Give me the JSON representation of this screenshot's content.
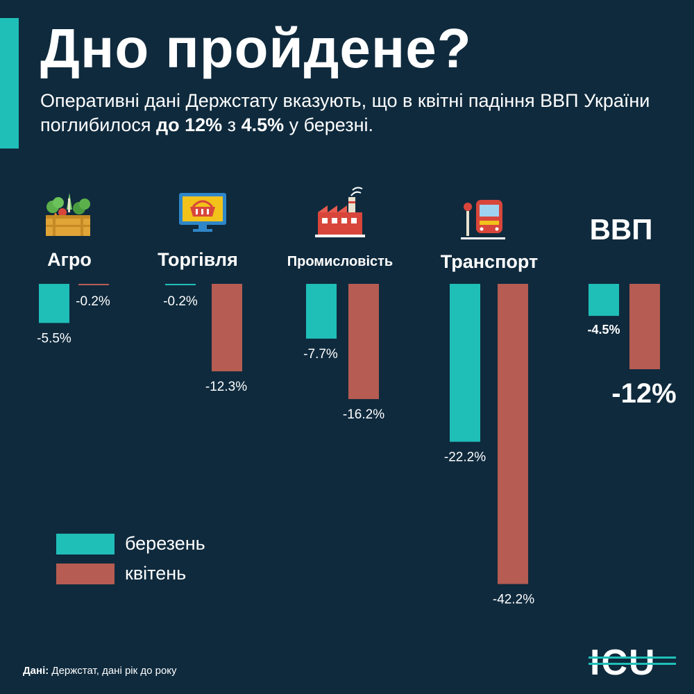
{
  "title": "Дно пройдене?",
  "subtitle": {
    "part1": "Оперативні дані Держстату вказують, що в квітні падіння ВВП України поглибилося ",
    "bold1": "до 12%",
    "part2": " з ",
    "bold2": "4.5%",
    "part3": " у березні."
  },
  "colors": {
    "background": "#0f2a3d",
    "march": "#1fbfb8",
    "april": "#b65c52",
    "accent": "#1fbfb8"
  },
  "chart_data": {
    "type": "bar",
    "categories": [
      "Агро",
      "Торгівля",
      "Промисловість",
      "Транспорт",
      "ВВП"
    ],
    "series": [
      {
        "name": "березень",
        "values": [
          -5.5,
          -0.2,
          -7.7,
          -22.2,
          -4.5
        ]
      },
      {
        "name": "квітень",
        "values": [
          -0.2,
          -12.3,
          -16.2,
          -42.2,
          -12
        ]
      }
    ],
    "value_labels": {
      "березень": [
        "-5.5%",
        "-0.2%",
        "-7.7%",
        "-22.2%",
        "-4.5%"
      ],
      "квітень": [
        "-0.2%",
        "-12.3%",
        "-16.2%",
        "-42.2%",
        "-12%"
      ]
    },
    "legend": {
      "position": "bottom-left"
    },
    "grid": false
  },
  "icons": [
    "vegetable-crate-icon",
    "shopping-basket-monitor-icon",
    "factory-icon",
    "train-icon"
  ],
  "legend": {
    "march": "березень",
    "april": "квітень"
  },
  "source": {
    "label": "Дані:",
    "text": " Держстат, дані рік до року"
  },
  "logo": {
    "text": "ICU"
  }
}
